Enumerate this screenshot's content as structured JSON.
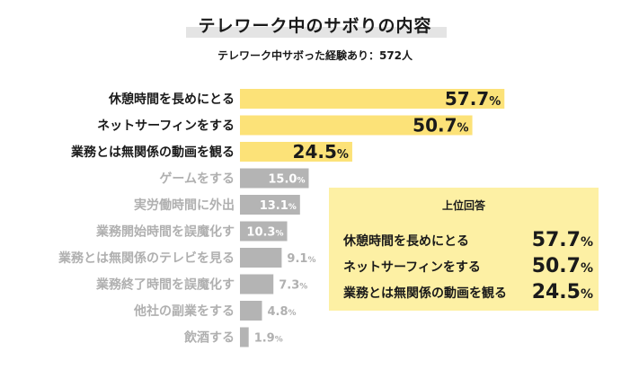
{
  "header": {
    "title": "テレワーク中のサボりの内容",
    "subtitle": "テレワーク中サボった経験あり：572人"
  },
  "colors": {
    "highlight": "#fce278",
    "muted": "#b4b4b4",
    "highlight_text": "#1a1a1a",
    "muted_text": "#b0b0b0",
    "summary_bg": "#fdf0a4"
  },
  "chart_data": {
    "type": "bar",
    "orientation": "horizontal",
    "categories": [
      "休憩時間を長めにとる",
      "ネットサーフィンをする",
      "業務とは無関係の動画を観る",
      "ゲームをする",
      "実労働時間に外出",
      "業務開始時間を誤魔化す",
      "業務とは無関係のテレビを見る",
      "業務終了時間を誤魔化す",
      "他社の副業をする",
      "飲酒する"
    ],
    "values": [
      57.7,
      50.7,
      24.5,
      15.0,
      13.1,
      10.3,
      9.1,
      7.3,
      4.8,
      1.9
    ],
    "value_labels": [
      "57.7",
      "50.7",
      "24.5",
      "15.0",
      "13.1",
      "10.3",
      "9.1",
      "7.3",
      "4.8",
      "1.9"
    ],
    "unit": "%",
    "highlighted_count": 3,
    "grid": false
  },
  "summary": {
    "title": "上位回答",
    "items": [
      {
        "label": "休憩時間を長めにとる",
        "value": "57.7",
        "unit": "%"
      },
      {
        "label": "ネットサーフィンをする",
        "value": "50.7",
        "unit": "%"
      },
      {
        "label": "業務とは無関係の動画を観る",
        "value": "24.5",
        "unit": "%"
      }
    ]
  }
}
